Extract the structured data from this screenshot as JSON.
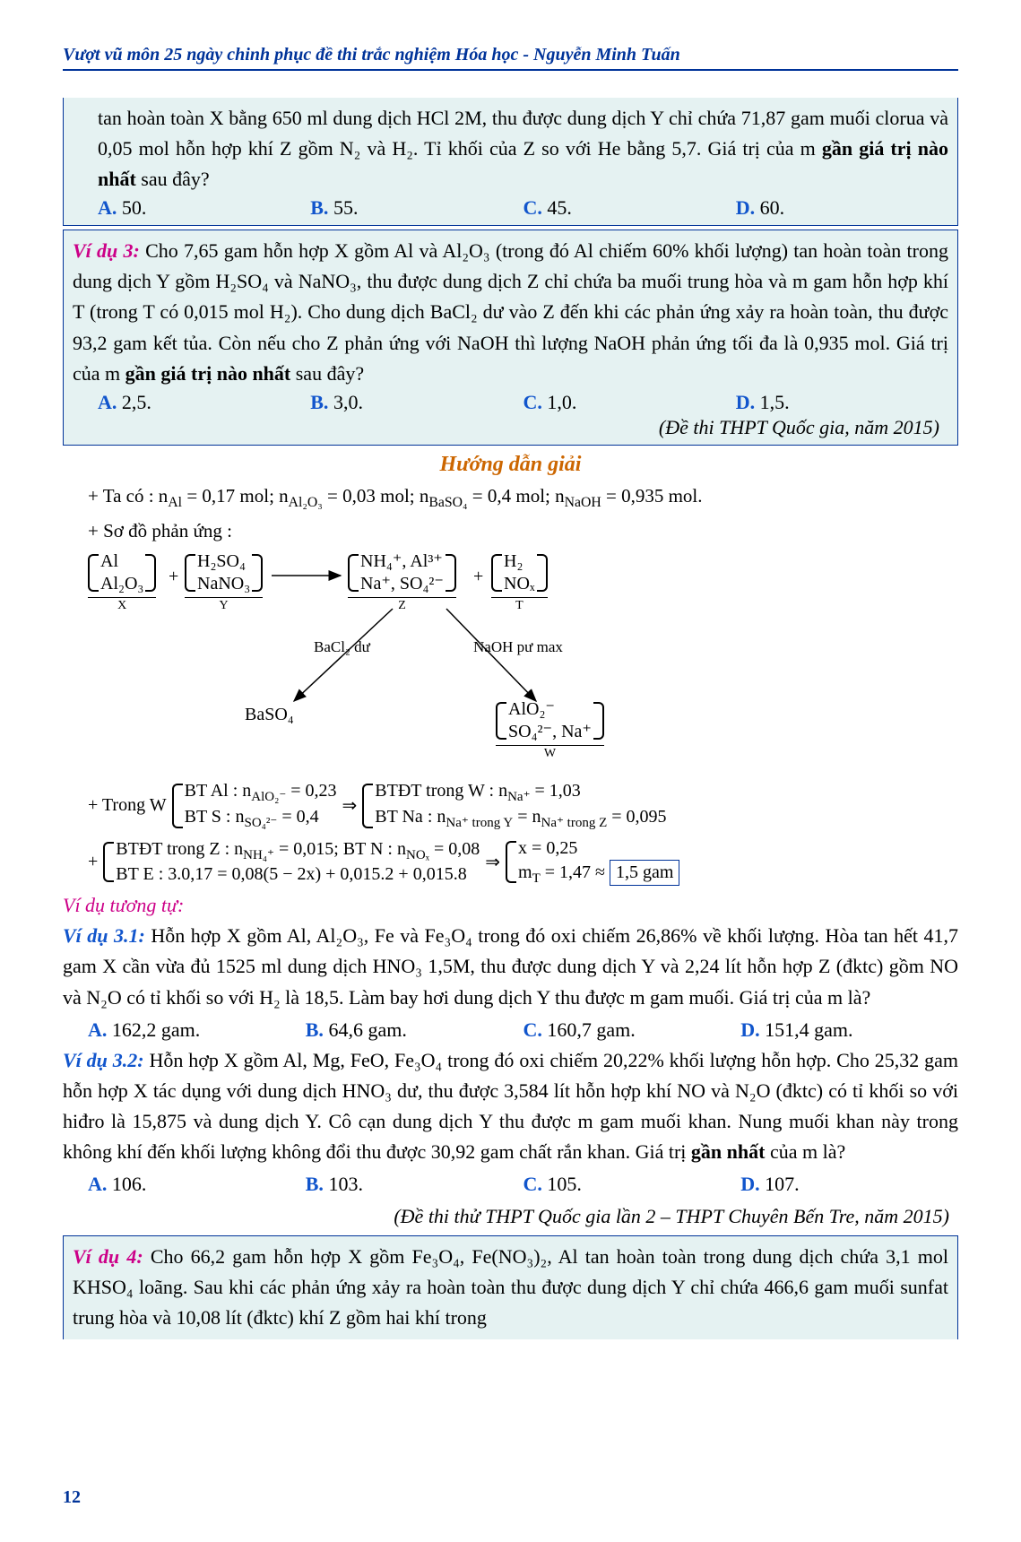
{
  "header": "Vượt vũ môn 25 ngày chinh phục đề thi trắc nghiệm Hóa học - Nguyễn Minh Tuấn",
  "frag_top": {
    "text": "tan hoàn toàn X bằng 650 ml dung dịch HCl 2M, thu được dung dịch Y chỉ chứa 71,87 gam muối clorua và 0,05 mol hỗn hợp khí Z gồm N₂ và H₂. Tỉ khối của Z so với He bằng 5,7. Giá trị của m <b>gần giá trị nào nhất</b> sau đây?",
    "choices": {
      "A": "50.",
      "B": "55.",
      "C": "45.",
      "D": "60."
    }
  },
  "ex3": {
    "label": "Ví dụ 3:",
    "text": "Cho 7,65 gam hỗn hợp X gồm Al và Al₂O₃ (trong đó Al chiếm 60% khối lượng) tan hoàn toàn trong dung dịch Y gồm H₂SO₄ và NaNO₃, thu được dung dịch Z chỉ chứa ba muối trung hòa và m gam hỗn hợp khí T (trong T có 0,015 mol H₂). Cho dung dịch BaCl₂ dư vào Z đến khi các phản ứng xảy ra hoàn toàn, thu được 93,2 gam kết tủa. Còn nếu cho Z phản ứng với NaOH thì lượng NaOH phản ứng tối đa là 0,935 mol. Giá trị của m <b>gần giá trị nào nhất</b> sau đây?",
    "choices": {
      "A": "2,5.",
      "B": "3,0.",
      "C": "1,0.",
      "D": "1,5."
    },
    "source": "(Đề thi THPT Quốc gia, năm 2015)"
  },
  "guide_title": "Hướng dẫn giải",
  "guide": {
    "line1": "+ Ta có : n<sub>Al</sub> = 0,17 mol; n<sub>Al₂O₃</sub> = 0,03 mol; n<sub>BaSO₄</sub> = 0,4 mol; n<sub>NaOH</sub> = 0,935 mol.",
    "line2": "+ Sơ đồ phản ứng :",
    "diagram": {
      "X": {
        "top": "Al",
        "bot": "Al₂O₃",
        "tag": "X"
      },
      "Y": {
        "top": "H₂SO₄",
        "bot": "NaNO₃",
        "tag": "Y"
      },
      "Z": {
        "top": "NH₄⁺, Al³⁺",
        "bot": "Na⁺, SO₄²⁻",
        "tag": "Z"
      },
      "T": {
        "top": "H₂",
        "bot": "NOₓ",
        "tag": "T"
      },
      "arrow_left_label": "BaCl₂ dư",
      "arrow_right_label": "NaOH pư max",
      "left_product": "BaSO₄",
      "W": {
        "top": "AlO₂⁻",
        "bot": "SO₄²⁻, Na⁺",
        "tag": "W"
      }
    },
    "W_calc": {
      "lead": "+ Trong W",
      "left": {
        "l1": "BT Al : n<sub>AlO₂⁻</sub> = 0,23",
        "l2": "BT S : n<sub>SO₄²⁻</sub> = 0,4"
      },
      "arrow": "⇒",
      "right": {
        "l1": "BTĐT trong W : n<sub>Na⁺</sub> = 1,03",
        "l2": "BT Na : n<sub>Na⁺ trong Y</sub> = n<sub>Na⁺ trong Z</sub> = 0,095"
      }
    },
    "Z_calc": {
      "left": {
        "l1": "BTĐT trong Z : n<sub>NH₄⁺</sub> = 0,015; BT N : n<sub>NOₓ</sub> = 0,08",
        "l2": "BT E : 3.0,17 = 0,08(5 − 2x) + 0,015.2 + 0,015.8"
      },
      "arrow": "⇒",
      "right": {
        "l1": "x = 0,25",
        "l2": "m<sub>T</sub> = 1,47 ≈"
      },
      "boxed": "1,5 gam"
    }
  },
  "similar_label": "Ví dụ tương tự:",
  "ex31": {
    "label": "Ví dụ 3.1:",
    "text": "Hỗn hợp X gồm Al, Al₂O₃, Fe và Fe₃O₄ trong đó oxi chiếm 26,86% về khối lượng. Hòa tan hết 41,7 gam X cần vừa đủ 1525 ml dung dịch HNO₃ 1,5M, thu được dung dịch Y và 2,24 lít hỗn hợp Z (đktc) gồm NO và N₂O có tỉ khối so với H₂ là 18,5. Làm bay hơi dung dịch Y thu được m gam muối. Giá trị của m là?",
    "choices": {
      "A": "162,2 gam.",
      "B": "64,6 gam.",
      "C": "160,7 gam.",
      "D": "151,4 gam."
    }
  },
  "ex32": {
    "label": "Ví dụ 3.2:",
    "text": "Hỗn hợp X gồm Al, Mg, FeO, Fe₃O₄ trong đó oxi chiếm 20,22% khối lượng hỗn hợp. Cho 25,32 gam hỗn hợp X tác dụng với dung dịch HNO₃ dư, thu được 3,584 lít hỗn hợp khí NO và N₂O (đktc) có tỉ khối so với hiđro là 15,875 và dung dịch Y. Cô cạn dung dịch Y thu được m gam muối khan. Nung muối khan này trong không khí đến khối lượng không đổi thu được 30,92 gam chất rắn khan. Giá trị <b>gần nhất</b> của m là?",
    "choices": {
      "A": "106.",
      "B": "103.",
      "C": "105.",
      "D": "107."
    },
    "source": "(Đề thi thử THPT Quốc gia lần 2 – THPT Chuyên Bến Tre, năm 2015)"
  },
  "ex4": {
    "label": "Ví dụ 4:",
    "text": "Cho 66,2 gam hỗn hợp X gồm Fe₃O₄, Fe(NO₃)₂, Al tan hoàn toàn trong dung dịch chứa 3,1 mol KHSO₄ loãng. Sau khi các phản ứng xảy ra hoàn toàn thu được dung dịch Y chỉ chứa 466,6 gam muối sunfat trung hòa và 10,08 lít (đktc) khí Z gồm hai khí trong"
  },
  "page_number": "12"
}
